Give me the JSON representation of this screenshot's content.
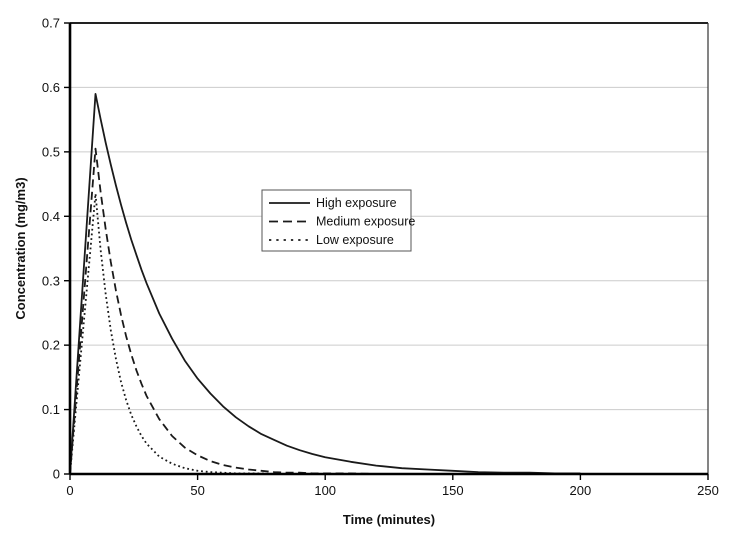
{
  "chart_data": {
    "type": "line",
    "title": "",
    "xlabel": "Time (minutes)",
    "ylabel": "Concentration (mg/m3)",
    "xlim": [
      0,
      250
    ],
    "ylim": [
      0,
      0.7
    ],
    "x_ticks": [
      0,
      50,
      100,
      150,
      200,
      250
    ],
    "y_ticks": [
      0,
      0.1,
      0.2,
      0.3,
      0.4,
      0.5,
      0.6,
      0.7
    ],
    "grid": "horizontal",
    "legend": {
      "position": "inside-plot-upper-left-center",
      "entries": [
        "High exposure",
        "Medium exposure",
        "Low exposure"
      ]
    },
    "x": [
      0,
      2,
      4,
      6,
      8,
      10,
      12,
      14,
      16,
      18,
      20,
      22,
      24,
      26,
      28,
      30,
      35,
      40,
      45,
      50,
      55,
      60,
      65,
      70,
      75,
      80,
      85,
      90,
      95,
      100,
      110,
      120,
      130,
      140,
      150,
      160,
      170,
      180,
      190,
      200
    ],
    "series": [
      {
        "name": "High exposure",
        "line_style": "solid",
        "peak": {
          "t": 10,
          "value": 0.59
        },
        "values": [
          0,
          0.118,
          0.236,
          0.354,
          0.472,
          0.59,
          0.551,
          0.514,
          0.48,
          0.448,
          0.418,
          0.39,
          0.364,
          0.34,
          0.317,
          0.296,
          0.249,
          0.21,
          0.176,
          0.148,
          0.125,
          0.105,
          0.088,
          0.074,
          0.062,
          0.053,
          0.044,
          0.037,
          0.031,
          0.026,
          0.019,
          0.013,
          0.009,
          0.007,
          0.005,
          0.003,
          0.002,
          0.002,
          0.001,
          0.001
        ]
      },
      {
        "name": "Medium exposure",
        "line_style": "dashed",
        "peak": {
          "t": 10,
          "value": 0.505
        },
        "values": [
          0,
          0.101,
          0.202,
          0.303,
          0.404,
          0.505,
          0.438,
          0.38,
          0.329,
          0.285,
          0.247,
          0.214,
          0.186,
          0.161,
          0.14,
          0.121,
          0.085,
          0.059,
          0.041,
          0.029,
          0.02,
          0.014,
          0.01,
          0.007,
          0.005,
          0.003,
          0.002,
          0.002,
          0.001,
          0.001,
          0.001,
          0,
          0,
          0,
          0,
          0,
          0,
          0,
          0,
          0
        ]
      },
      {
        "name": "Low exposure",
        "line_style": "dotted",
        "peak": {
          "t": 10,
          "value": 0.435
        },
        "values": [
          0,
          0.087,
          0.174,
          0.261,
          0.348,
          0.435,
          0.348,
          0.279,
          0.223,
          0.179,
          0.143,
          0.115,
          0.092,
          0.074,
          0.059,
          0.047,
          0.027,
          0.016,
          0.009,
          0.005,
          0.003,
          0.002,
          0.001,
          0.001,
          0.001,
          0,
          0,
          0,
          0,
          0,
          0,
          0,
          0,
          0,
          0,
          0,
          0,
          0,
          0,
          0
        ]
      }
    ],
    "colors": {
      "line": "#1a1a1a",
      "grid": "#cccccc",
      "background": "#ffffff",
      "text": "#111111"
    }
  }
}
